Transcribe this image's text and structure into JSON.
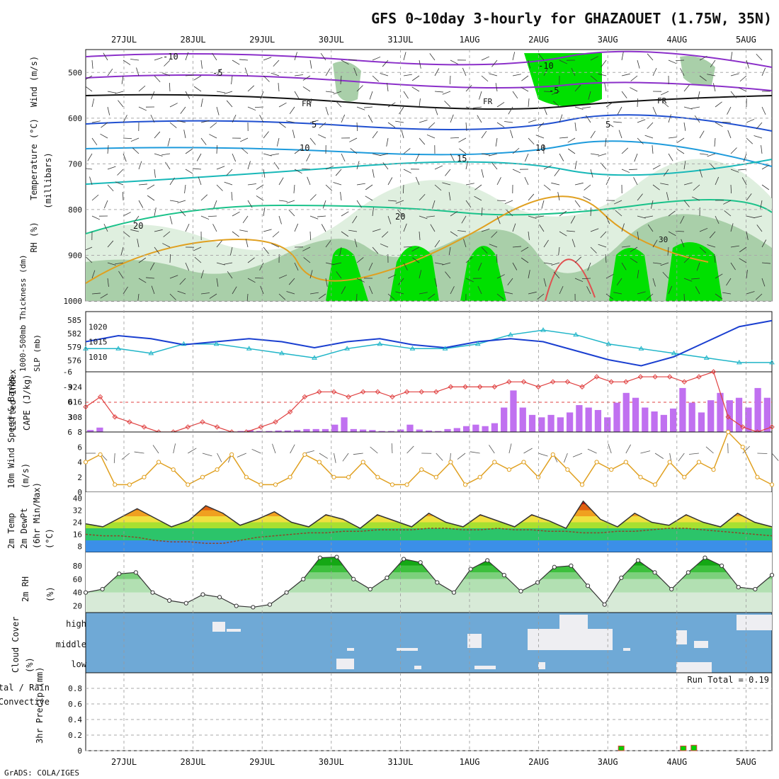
{
  "chart_data": {
    "type": "meteogram",
    "title": "GFS 0~10day 3-hourly for GHAZAOUET (1.75W, 35N)",
    "footer": "GrADS: COLA/IGES",
    "dates": [
      "27JUL",
      "28JUL",
      "29JUL",
      "30JUL",
      "31JUL",
      "1AUG",
      "2AUG",
      "3AUG",
      "4AUG",
      "5AUG"
    ],
    "panels": [
      {
        "id": "upper-air",
        "labels": [
          "RH (%)",
          "Temperature (°C)",
          "Wind (m/s)",
          "(millibars)"
        ],
        "y_ticks": [
          "500",
          "600",
          "700",
          "800",
          "900",
          "1000"
        ],
        "ylim": [
          1000,
          450
        ],
        "contour_labels": [
          "-10",
          "-5",
          "FR",
          "-5",
          "10",
          "15",
          "20",
          "30",
          "-10",
          "-5",
          "FR",
          "-5",
          "10",
          "20",
          "30"
        ]
      },
      {
        "id": "slp-thickness",
        "labels": [
          "1000-500mb Thickness (dm)",
          "SLP (mb)"
        ],
        "y_ticks_left": [
          "585",
          "582",
          "579",
          "576"
        ],
        "y_ticks_right": [
          "1020",
          "1015",
          "1010"
        ],
        "slp": [
          1015,
          1017,
          1016,
          1014,
          1015,
          1016,
          1015,
          1013,
          1015,
          1016,
          1014,
          1013,
          1015,
          1016,
          1015,
          1012,
          1009,
          1007,
          1010,
          1015,
          1020,
          1022
        ],
        "thickness": [
          579,
          579,
          578,
          580,
          580,
          579,
          578,
          577,
          579,
          580,
          579,
          579,
          580,
          582,
          583,
          582,
          580,
          579,
          578,
          577,
          576,
          576
        ]
      },
      {
        "id": "cape-li",
        "labels": [
          "Lifted Index",
          "CAPE (J/kg)"
        ],
        "y_ticks_left": [
          "-6",
          "-3",
          "0",
          "3",
          "6"
        ],
        "y_ticks_right": [
          "924",
          "616",
          "308"
        ],
        "cape": [
          40,
          90,
          0,
          0,
          0,
          0,
          0,
          0,
          0,
          0,
          0,
          0,
          0,
          0,
          10,
          10,
          20,
          40,
          20,
          20,
          30,
          30,
          40,
          60,
          60,
          60,
          150,
          300,
          60,
          50,
          40,
          20,
          20,
          50,
          150,
          50,
          30,
          20,
          60,
          80,
          120,
          150,
          120,
          180,
          500,
          850,
          500,
          350,
          300,
          350,
          300,
          400,
          550,
          500,
          450,
          300,
          600,
          800,
          700,
          500,
          420,
          350,
          480,
          900,
          600,
          400,
          650,
          800,
          650,
          700,
          500,
          900,
          700
        ],
        "lifted_index": [
          1,
          -1,
          3,
          4,
          5,
          6,
          6,
          5,
          4,
          5,
          6,
          6,
          5,
          4,
          2,
          -1,
          -2,
          -2,
          -1,
          -2,
          -2,
          -1,
          -2,
          -2,
          -2,
          -3,
          -3,
          -3,
          -3,
          -4,
          -4,
          -3,
          -4,
          -4,
          -3,
          -5,
          -4,
          -4,
          -5,
          -5,
          -5,
          -4,
          -5,
          -6,
          3,
          5,
          6,
          5
        ]
      },
      {
        "id": "wind10m",
        "labels": [
          "10m Wind Speed & Barbs",
          "(m/s)"
        ],
        "y_ticks": [
          "8",
          "6",
          "4",
          "2",
          "0"
        ],
        "speed": [
          4,
          5,
          1,
          1,
          2,
          4,
          3,
          1,
          2,
          3,
          5,
          2,
          1,
          1,
          2,
          5,
          4,
          2,
          2,
          4,
          2,
          1,
          1,
          3,
          2,
          4,
          1,
          2,
          4,
          3,
          4,
          2,
          5,
          3,
          1,
          4,
          3,
          4,
          2,
          1,
          4,
          2,
          4,
          3,
          8,
          6,
          2,
          1
        ]
      },
      {
        "id": "temp2m",
        "labels": [
          "2m Temp",
          "2m DewPt",
          "(6hr Min/Max)",
          "(°C)"
        ],
        "y_ticks": [
          "40",
          "32",
          "24",
          "16",
          "8"
        ],
        "temp": [
          23,
          21,
          27,
          33,
          27,
          21,
          25,
          35,
          30,
          22,
          26,
          31,
          24,
          21,
          29,
          26,
          20,
          29,
          25,
          21,
          30,
          24,
          21,
          29,
          25,
          21,
          29,
          25,
          20,
          38,
          26,
          21,
          30,
          24,
          22,
          29,
          24,
          21,
          30,
          24,
          21
        ],
        "dewpoint": [
          16,
          15,
          15,
          14,
          12,
          11,
          11,
          10,
          10,
          12,
          14,
          15,
          16,
          17,
          17,
          18,
          18,
          19,
          19,
          19,
          20,
          20,
          19,
          19,
          20,
          19,
          19,
          18,
          18,
          17,
          17,
          18,
          18,
          19,
          20,
          20,
          19,
          18,
          17,
          16,
          15
        ]
      },
      {
        "id": "rh2m",
        "labels": [
          "2m RH",
          "(%)"
        ],
        "y_ticks": [
          "80",
          "60",
          "40",
          "20"
        ],
        "rh": [
          40,
          45,
          68,
          70,
          40,
          28,
          24,
          37,
          33,
          20,
          18,
          22,
          40,
          60,
          92,
          93,
          60,
          45,
          62,
          90,
          85,
          55,
          40,
          75,
          88,
          66,
          42,
          55,
          78,
          80,
          50,
          22,
          62,
          88,
          70,
          45,
          70,
          92,
          80,
          48,
          45,
          66
        ]
      },
      {
        "id": "cloud",
        "labels": [
          "Cloud Cover",
          "(%)"
        ],
        "levels": [
          "high",
          "middle",
          "low"
        ]
      },
      {
        "id": "precip",
        "labels": [
          "Total / Rain",
          "Convective",
          "3hr Precip (mm)"
        ],
        "y_ticks": [
          "0.8",
          "0.6",
          "0.4",
          "0.2",
          "0"
        ],
        "run_total": "Run Total = 0.19",
        "precip": [
          {
            "date": "3AUG",
            "value": 0.06
          },
          {
            "date": "4AUG",
            "value": 0.06
          },
          {
            "date": "4AUG",
            "value": 0.07
          }
        ]
      }
    ]
  }
}
